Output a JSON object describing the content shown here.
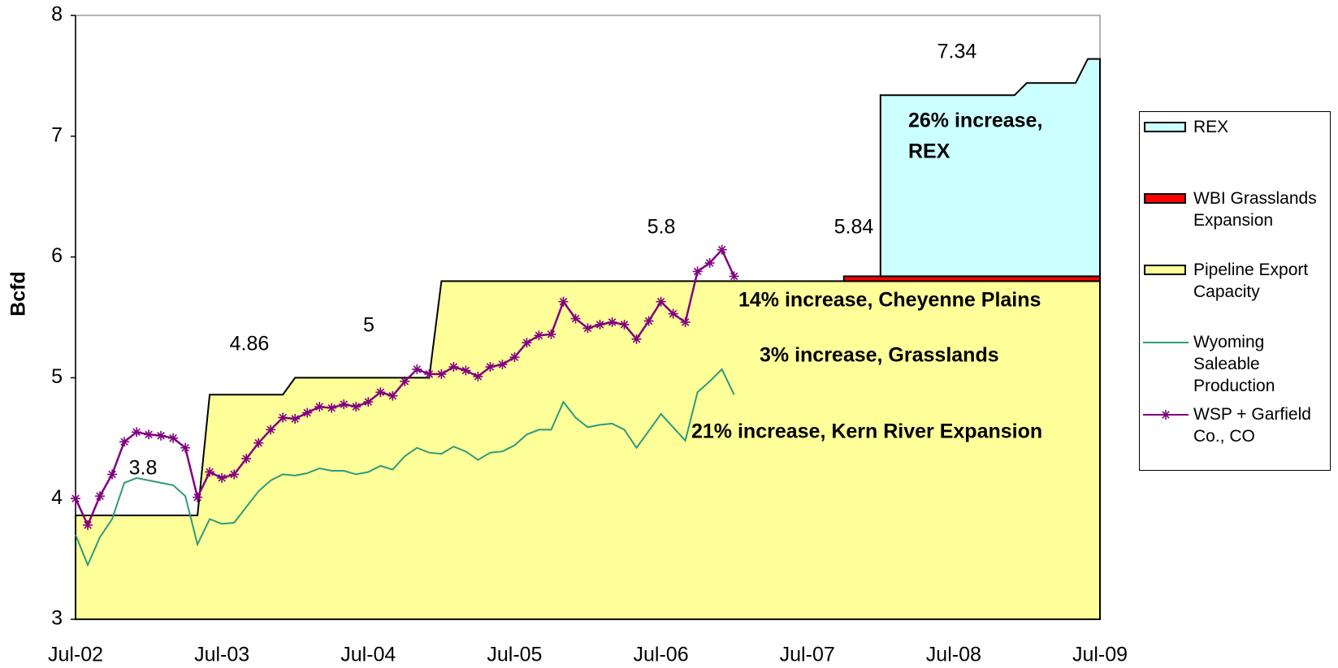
{
  "chart_data": {
    "type": "area",
    "ylabel": "Bcfd",
    "ylim": [
      3,
      8
    ],
    "yticks": [
      3,
      4,
      5,
      6,
      7,
      8
    ],
    "categories": [
      "Jul-02",
      null,
      null,
      null,
      null,
      null,
      null,
      null,
      null,
      null,
      null,
      null,
      "Jul-03",
      null,
      null,
      null,
      null,
      null,
      null,
      null,
      null,
      null,
      null,
      null,
      "Jul-04",
      null,
      null,
      null,
      null,
      null,
      null,
      null,
      null,
      null,
      null,
      null,
      "Jul-05",
      null,
      null,
      null,
      null,
      null,
      null,
      null,
      null,
      null,
      null,
      null,
      "Jul-06",
      null,
      null,
      null,
      null,
      null,
      null,
      null,
      null,
      null,
      null,
      null,
      "Jul-07",
      null,
      null,
      null,
      null,
      null,
      null,
      null,
      null,
      null,
      null,
      null,
      "Jul-08",
      null,
      null,
      null,
      null,
      null,
      null,
      null,
      null,
      null,
      null,
      null,
      "Jul-09"
    ],
    "series": [
      {
        "name": "REX",
        "type": "area",
        "color": "#ccffff",
        "values": [
          null,
          null,
          null,
          null,
          null,
          null,
          null,
          null,
          null,
          null,
          null,
          null,
          null,
          null,
          null,
          null,
          null,
          null,
          null,
          null,
          null,
          null,
          null,
          null,
          null,
          null,
          null,
          null,
          null,
          null,
          null,
          null,
          null,
          null,
          null,
          null,
          null,
          null,
          null,
          null,
          null,
          null,
          null,
          null,
          null,
          null,
          null,
          null,
          null,
          null,
          null,
          null,
          null,
          null,
          null,
          null,
          null,
          null,
          null,
          null,
          null,
          null,
          null,
          null,
          null,
          null,
          1.5,
          1.5,
          1.5,
          1.5,
          1.5,
          1.5,
          1.5,
          1.5,
          1.5,
          1.5,
          1.5,
          1.5,
          1.6,
          1.6,
          1.6,
          1.6,
          1.6,
          1.8,
          1.8
        ]
      },
      {
        "name": "WBI Grasslands Expansion",
        "type": "area",
        "color": "#ff0000",
        "values": [
          null,
          null,
          null,
          null,
          null,
          null,
          null,
          null,
          null,
          null,
          null,
          null,
          null,
          null,
          null,
          null,
          null,
          null,
          null,
          null,
          null,
          null,
          null,
          null,
          null,
          null,
          null,
          null,
          null,
          null,
          null,
          null,
          null,
          null,
          null,
          null,
          null,
          null,
          null,
          null,
          null,
          null,
          null,
          null,
          null,
          null,
          null,
          null,
          null,
          null,
          null,
          null,
          null,
          null,
          null,
          null,
          null,
          null,
          null,
          null,
          null,
          null,
          null,
          0.04,
          0.04,
          0.04,
          0.04,
          0.04,
          0.04,
          0.04,
          0.04,
          0.04,
          0.04,
          0.04,
          0.04,
          0.04,
          0.04,
          0.04,
          0.04,
          0.04,
          0.04,
          0.04,
          0.04,
          0.04,
          0.04
        ]
      },
      {
        "name": "Pipeline Export Capacity",
        "type": "area",
        "color": "#ffff99",
        "values": [
          3.86,
          3.86,
          3.86,
          3.86,
          3.86,
          3.86,
          3.86,
          3.86,
          3.86,
          3.86,
          3.86,
          4.86,
          4.86,
          4.86,
          4.86,
          4.86,
          4.86,
          4.86,
          5.0,
          5.0,
          5.0,
          5.0,
          5.0,
          5.0,
          5.0,
          5.0,
          5.0,
          5.0,
          5.0,
          5.0,
          5.8,
          5.8,
          5.8,
          5.8,
          5.8,
          5.8,
          5.8,
          5.8,
          5.8,
          5.8,
          5.8,
          5.8,
          5.8,
          5.8,
          5.8,
          5.8,
          5.8,
          5.8,
          5.8,
          5.8,
          5.8,
          5.8,
          5.8,
          5.8,
          5.8,
          5.8,
          5.8,
          5.8,
          5.8,
          5.8,
          5.8,
          5.8,
          5.8,
          5.8,
          5.8,
          5.8,
          5.8,
          5.8,
          5.8,
          5.8,
          5.8,
          5.8,
          5.8,
          5.8,
          5.8,
          5.8,
          5.8,
          5.8,
          5.8,
          5.8,
          5.8,
          5.8,
          5.8,
          5.8,
          5.8
        ]
      },
      {
        "name": "Wyoming Saleable Production",
        "type": "line",
        "color": "#2e9a7c",
        "values": [
          3.7,
          3.45,
          3.68,
          3.83,
          4.13,
          4.17,
          4.15,
          4.13,
          4.11,
          4.02,
          3.62,
          3.83,
          3.79,
          3.8,
          3.93,
          4.06,
          4.15,
          4.2,
          4.19,
          4.21,
          4.25,
          4.23,
          4.23,
          4.2,
          4.22,
          4.27,
          4.24,
          4.35,
          4.42,
          4.38,
          4.37,
          4.43,
          4.39,
          4.32,
          4.38,
          4.39,
          4.44,
          4.53,
          4.57,
          4.57,
          4.8,
          4.67,
          4.59,
          4.61,
          4.62,
          4.57,
          4.42,
          4.56,
          4.7,
          4.59,
          4.48,
          4.88,
          4.97,
          5.07,
          4.86,
          null,
          null,
          null,
          null,
          null,
          null,
          null,
          null,
          null,
          null,
          null,
          null,
          null,
          null,
          null,
          null,
          null,
          null,
          null,
          null,
          null,
          null,
          null,
          null,
          null,
          null,
          null,
          null,
          null,
          null
        ]
      },
      {
        "name": "WSP + Garfield Co., CO",
        "type": "line",
        "marker": "star",
        "color": "#800080",
        "values": [
          4.0,
          3.78,
          4.02,
          4.2,
          4.47,
          4.55,
          4.53,
          4.52,
          4.5,
          4.42,
          4.01,
          4.22,
          4.17,
          4.2,
          4.33,
          4.46,
          4.57,
          4.67,
          4.66,
          4.71,
          4.76,
          4.75,
          4.78,
          4.76,
          4.8,
          4.88,
          4.85,
          4.97,
          5.07,
          5.03,
          5.03,
          5.09,
          5.06,
          5.01,
          5.09,
          5.11,
          5.17,
          5.29,
          5.35,
          5.36,
          5.63,
          5.49,
          5.41,
          5.44,
          5.46,
          5.44,
          5.32,
          5.47,
          5.63,
          5.53,
          5.46,
          5.88,
          5.95,
          6.06,
          5.84,
          null,
          null,
          null,
          null,
          null,
          null,
          null,
          null,
          null,
          null,
          null,
          null,
          null,
          null,
          null,
          null,
          null,
          null,
          null,
          null,
          null,
          null,
          null,
          null,
          null,
          null,
          null,
          null,
          null,
          null
        ]
      }
    ],
    "annotations": [
      "7.34",
      "26% increase,",
      "REX",
      "5.84",
      "5.8",
      "14% increase, Cheyenne Plains",
      "3% increase, Grasslands",
      "21% increase, Kern River Expansion",
      "4.86",
      "5",
      "3.8"
    ],
    "legend": "right"
  }
}
